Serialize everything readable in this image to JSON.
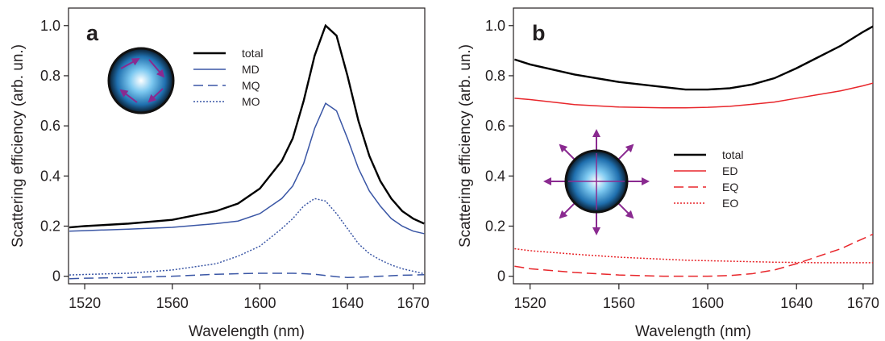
{
  "chart_data": [
    {
      "type": "line",
      "panel_label": "a",
      "xlabel": "Wavelength (nm)",
      "ylabel": "Scattering efficiency (arb. un.)",
      "x": [
        1513,
        1520,
        1540,
        1560,
        1580,
        1590,
        1600,
        1610,
        1615,
        1620,
        1625,
        1630,
        1635,
        1640,
        1645,
        1650,
        1655,
        1660,
        1665,
        1670,
        1675
      ],
      "series": [
        {
          "name": "total",
          "color": "#000000",
          "dash": "solid",
          "values": [
            0.195,
            0.2,
            0.21,
            0.225,
            0.26,
            0.29,
            0.35,
            0.46,
            0.55,
            0.7,
            0.88,
            1.0,
            0.96,
            0.8,
            0.62,
            0.48,
            0.38,
            0.31,
            0.26,
            0.23,
            0.21
          ]
        },
        {
          "name": "MD",
          "color": "#3a56a5",
          "dash": "solid",
          "values": [
            0.18,
            0.182,
            0.188,
            0.195,
            0.21,
            0.22,
            0.25,
            0.31,
            0.36,
            0.45,
            0.59,
            0.69,
            0.66,
            0.55,
            0.43,
            0.34,
            0.28,
            0.23,
            0.2,
            0.18,
            0.17
          ]
        },
        {
          "name": "MQ",
          "color": "#3a56a5",
          "dash": "dashed",
          "values": [
            -0.01,
            -0.008,
            -0.005,
            0.0,
            0.008,
            0.01,
            0.012,
            0.012,
            0.012,
            0.01,
            0.008,
            0.003,
            -0.002,
            -0.005,
            -0.004,
            -0.002,
            0.0,
            0.002,
            0.004,
            0.005,
            0.006
          ]
        },
        {
          "name": "MO",
          "color": "#3a56a5",
          "dash": "dotted",
          "values": [
            0.005,
            0.007,
            0.012,
            0.025,
            0.05,
            0.08,
            0.12,
            0.19,
            0.23,
            0.28,
            0.31,
            0.3,
            0.25,
            0.19,
            0.13,
            0.09,
            0.065,
            0.045,
            0.03,
            0.02,
            0.01
          ]
        }
      ],
      "xlim": [
        1512.6,
        1675.3
      ],
      "ylim": [
        -0.03,
        1.07
      ],
      "xticks": [
        1520,
        1560,
        1600,
        1640,
        1670
      ],
      "yticks": [
        0,
        0.2,
        0.4,
        0.6,
        0.8,
        {
          "value": 1,
          "label": "1.0"
        }
      ]
    },
    {
      "type": "line",
      "panel_label": "b",
      "xlabel": "Wavelength (nm)",
      "ylabel": "Scattering efficiency (arb. un.)",
      "x": [
        1513,
        1520,
        1540,
        1560,
        1580,
        1590,
        1600,
        1610,
        1620,
        1630,
        1640,
        1650,
        1660,
        1670,
        1675
      ],
      "series": [
        {
          "name": "total",
          "color": "#000000",
          "dash": "solid",
          "values": [
            0.865,
            0.845,
            0.805,
            0.775,
            0.755,
            0.745,
            0.745,
            0.75,
            0.765,
            0.79,
            0.83,
            0.875,
            0.92,
            0.975,
            1.0
          ]
        },
        {
          "name": "ED",
          "color": "#e8262b",
          "dash": "solid",
          "values": [
            0.71,
            0.705,
            0.685,
            0.675,
            0.672,
            0.672,
            0.674,
            0.678,
            0.686,
            0.695,
            0.71,
            0.725,
            0.74,
            0.76,
            0.772
          ]
        },
        {
          "name": "EQ",
          "color": "#e8262b",
          "dash": "dashed",
          "values": [
            0.04,
            0.03,
            0.015,
            0.005,
            0.0,
            0.0,
            0.0,
            0.003,
            0.01,
            0.025,
            0.05,
            0.08,
            0.11,
            0.15,
            0.17
          ]
        },
        {
          "name": "EO",
          "color": "#e8262b",
          "dash": "dotted",
          "values": [
            0.11,
            0.102,
            0.088,
            0.076,
            0.068,
            0.064,
            0.062,
            0.06,
            0.058,
            0.056,
            0.055,
            0.054,
            0.054,
            0.054,
            0.054
          ]
        }
      ],
      "xlim": [
        1512.5,
        1674.4
      ],
      "ylim": [
        -0.03,
        1.07
      ],
      "xticks": [
        1520,
        1560,
        1600,
        1640,
        1670
      ],
      "yticks": [
        0,
        0.2,
        0.4,
        0.6,
        0.8,
        {
          "value": 1,
          "label": "1.0"
        }
      ]
    }
  ]
}
